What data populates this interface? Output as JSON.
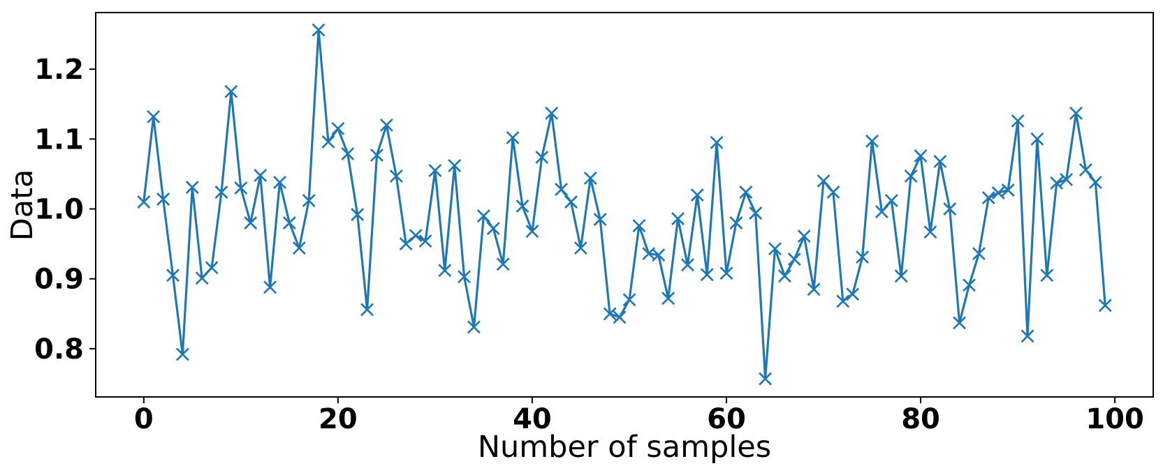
{
  "figure": {
    "background": "#ffffff",
    "border_color": "#000000"
  },
  "chart_data": {
    "type": "line",
    "title": "",
    "xlabel": "Number of samples",
    "ylabel": "Data",
    "x": {
      "start": 0,
      "step": 1,
      "count": 100
    },
    "series": [
      {
        "name": "Data",
        "color": "#1f77b4",
        "marker": "x",
        "values": [
          1.01,
          1.132,
          1.014,
          0.905,
          0.792,
          1.031,
          0.901,
          0.916,
          1.024,
          1.168,
          1.03,
          0.98,
          1.048,
          0.888,
          1.038,
          0.98,
          0.944,
          1.012,
          1.256,
          1.096,
          1.115,
          1.079,
          0.992,
          0.856,
          1.077,
          1.12,
          1.047,
          0.95,
          0.962,
          0.954,
          1.055,
          0.912,
          1.062,
          0.903,
          0.831,
          0.99,
          0.972,
          0.921,
          1.102,
          1.004,
          0.968,
          1.074,
          1.137,
          1.028,
          1.01,
          0.944,
          1.044,
          0.985,
          0.85,
          0.845,
          0.87,
          0.976,
          0.936,
          0.934,
          0.872,
          0.986,
          0.92,
          1.02,
          0.906,
          1.095,
          0.908,
          0.98,
          1.024,
          0.994,
          0.757,
          0.943,
          0.904,
          0.928,
          0.961,
          0.885,
          1.04,
          1.024,
          0.868,
          0.878,
          0.931,
          1.097,
          0.996,
          1.012,
          0.904,
          1.047,
          1.076,
          0.967,
          1.068,
          1.0,
          0.837,
          0.891,
          0.936,
          1.016,
          1.023,
          1.027,
          1.126,
          0.818,
          1.1,
          0.905,
          1.037,
          1.042,
          1.137,
          1.056,
          1.038,
          0.862
        ]
      }
    ],
    "xlim": [
      -4.95,
      103.95
    ],
    "ylim": [
      0.731,
      1.281
    ],
    "xticks": [
      0,
      20,
      40,
      60,
      80,
      100
    ],
    "yticks": [
      0.8,
      0.9,
      1.0,
      1.1,
      1.2
    ],
    "xtick_labels": [
      "0",
      "20",
      "40",
      "60",
      "80",
      "100"
    ],
    "ytick_labels": [
      "0.8",
      "0.9",
      "1.0",
      "1.1",
      "1.2"
    ],
    "grid": false,
    "legend": "none"
  }
}
